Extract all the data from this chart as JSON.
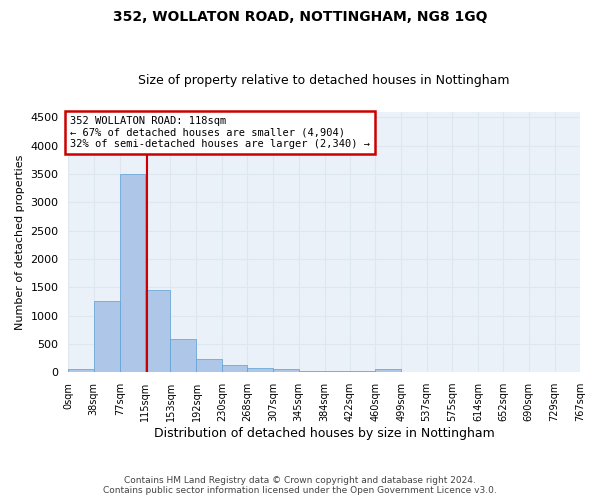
{
  "title": "352, WOLLATON ROAD, NOTTINGHAM, NG8 1GQ",
  "subtitle": "Size of property relative to detached houses in Nottingham",
  "xlabel": "Distribution of detached houses by size in Nottingham",
  "ylabel": "Number of detached properties",
  "annotation_title": "352 WOLLATON ROAD: 118sqm",
  "annotation_line1": "← 67% of detached houses are smaller (4,904)",
  "annotation_line2": "32% of semi-detached houses are larger (2,340) →",
  "property_size": 118,
  "vline_x": 118,
  "bin_edges": [
    0,
    38,
    77,
    115,
    153,
    192,
    230,
    268,
    307,
    345,
    384,
    422,
    460,
    499,
    537,
    575,
    614,
    652,
    690,
    729,
    767
  ],
  "bar_heights": [
    50,
    1250,
    3500,
    1460,
    580,
    230,
    130,
    80,
    50,
    30,
    30,
    30,
    50,
    0,
    0,
    0,
    0,
    0,
    0,
    0
  ],
  "bar_color": "#aec6e8",
  "bar_edge_color": "#5a9fd4",
  "vline_color": "#cc0000",
  "annotation_box_color": "#cc0000",
  "annotation_bg_color": "#ffffff",
  "ylim": [
    0,
    4600
  ],
  "yticks": [
    0,
    500,
    1000,
    1500,
    2000,
    2500,
    3000,
    3500,
    4000,
    4500
  ],
  "grid_color": "#dde7f0",
  "bg_color": "#eaf1f8",
  "footer_line1": "Contains HM Land Registry data © Crown copyright and database right 2024.",
  "footer_line2": "Contains public sector information licensed under the Open Government Licence v3.0."
}
